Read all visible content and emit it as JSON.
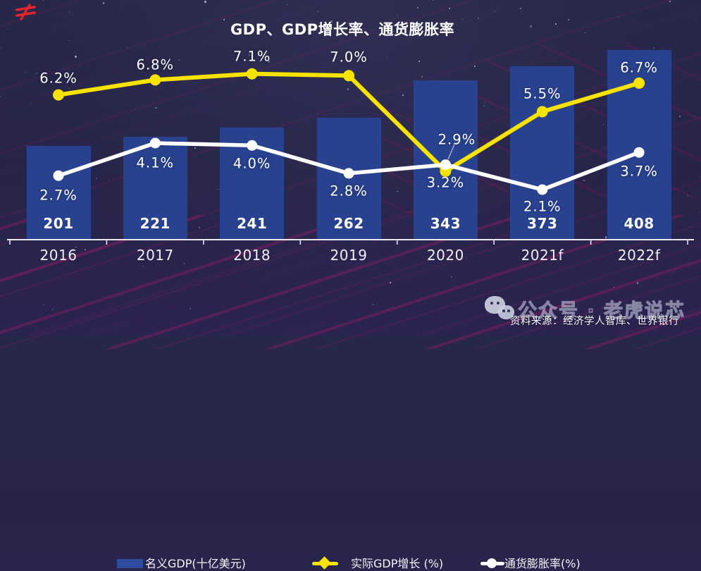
{
  "title": "GDP、GDP增长率、通货膨胀率",
  "header_icon": "red-slash-logo-icon",
  "chart_data": {
    "type": "combo-bar-line",
    "title": "GDP、GDP增长率、通货膨胀率",
    "categories": [
      "2016",
      "2017",
      "2018",
      "2019",
      "2020",
      "2021f",
      "2022f"
    ],
    "series": [
      {
        "name": "名义GDP(十亿美元)",
        "type": "bar",
        "color": "#28428f",
        "values": [
          201,
          221,
          241,
          262,
          343,
          373,
          408
        ],
        "data_labels": [
          "201",
          "221",
          "241",
          "262",
          "343",
          "373",
          "408"
        ]
      },
      {
        "name": "实际GDP增长 (%)",
        "type": "line",
        "color": "#f6e300",
        "marker": "circle",
        "values": [
          6.2,
          6.8,
          7.1,
          7.0,
          3.2,
          5.5,
          6.7
        ],
        "data_labels": [
          "6.2%",
          "6.8%",
          "7.1%",
          "7.0%",
          "3.2%",
          "5.5%",
          "6.7%"
        ]
      },
      {
        "name": "通货膨胀率(%)",
        "type": "line",
        "color": "#ffffff",
        "marker": "circle",
        "values": [
          2.7,
          4.1,
          4.0,
          2.8,
          2.9,
          2.1,
          3.7
        ],
        "data_labels": [
          "2.7%",
          "4.1%",
          "4.0%",
          "2.8%",
          "2.9%",
          "2.1%",
          "3.7%"
        ]
      }
    ],
    "legend_position": "bottom",
    "grid": false,
    "value_axis_hidden": true
  },
  "legend": {
    "items": [
      {
        "label": "名义GDP(十亿美元)",
        "swatch": "bar-swatch",
        "color": "#2e4c9b"
      },
      {
        "label": "实际GDP增长 (%)",
        "swatch": "diamond-line",
        "color": "#f6e300"
      },
      {
        "label": "通货膨胀率(%)",
        "swatch": "circle-line",
        "color": "#ffffff"
      }
    ]
  },
  "footer": {
    "wechat_icon": "wechat-icon",
    "watermark": "公众号 · 老虎说芯",
    "source": "资料来源：经济学人智库、世界银行"
  },
  "colors": {
    "background": "#27274a",
    "bar": "#28428f",
    "gdp_line": "#f6e300",
    "inflation_line": "#ffffff",
    "stripe": "#9c1f62",
    "axis": "#e8e8f0",
    "text": "#ffffff"
  }
}
